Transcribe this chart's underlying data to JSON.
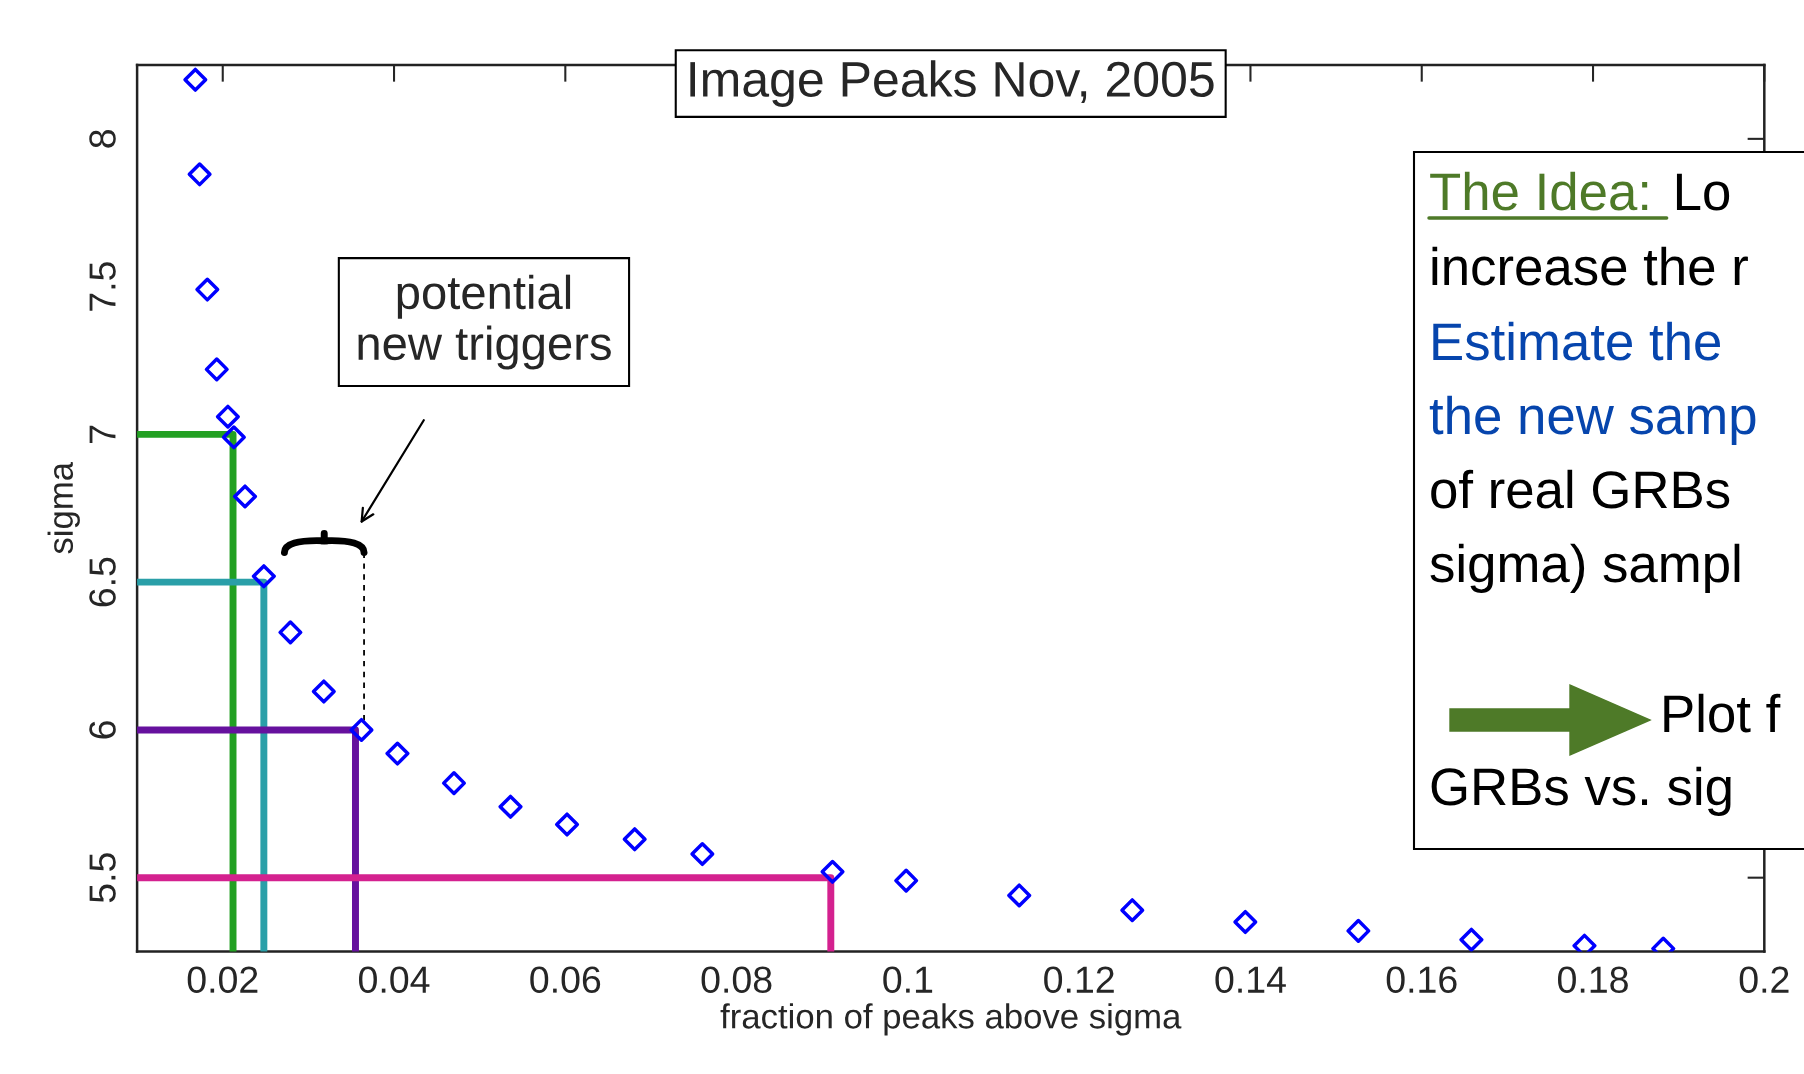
{
  "chart_data": {
    "type": "scatter",
    "title": "Image Peaks Nov, 2005",
    "xlabel": "fraction of peaks above sigma",
    "ylabel": "sigma",
    "xlim": [
      0.01,
      0.2
    ],
    "ylim": [
      5.25,
      8.25
    ],
    "xticks": [
      0.02,
      0.04,
      0.06,
      0.08,
      0.1,
      0.12,
      0.14,
      0.16,
      0.18,
      0.2
    ],
    "yticks": [
      5.5,
      6,
      6.5,
      7,
      7.5,
      8
    ],
    "grid": false,
    "legend": false,
    "series": [
      {
        "marker": "diamond",
        "color": "#0000ff",
        "x": [
          0.0168,
          0.0173,
          0.0182,
          0.0193,
          0.0206,
          0.0213,
          0.0226,
          0.0248,
          0.0279,
          0.0318,
          0.0362,
          0.0404,
          0.047,
          0.0536,
          0.0602,
          0.0681,
          0.076,
          0.0912,
          0.0998,
          0.113,
          0.1262,
          0.1394,
          0.1526,
          0.1658,
          0.179,
          0.1882
        ],
        "values": [
          8.2,
          7.88,
          7.49,
          7.22,
          7.06,
          6.99,
          6.79,
          6.52,
          6.33,
          6.13,
          6.0,
          5.92,
          5.82,
          5.74,
          5.68,
          5.63,
          5.58,
          5.52,
          5.49,
          5.44,
          5.39,
          5.35,
          5.32,
          5.29,
          5.27,
          5.26
        ]
      },
      {
        "type": "line",
        "color": "#22a022",
        "x": [
          0.01,
          0.0212,
          0.0212
        ],
        "values": [
          7.0,
          7.0,
          5.25
        ]
      },
      {
        "type": "line",
        "color": "#2a9fa8",
        "x": [
          0.01,
          0.0248,
          0.0248
        ],
        "values": [
          6.5,
          6.5,
          5.25
        ]
      },
      {
        "type": "line",
        "color": "#66119e",
        "x": [
          0.01,
          0.0355,
          0.0355
        ],
        "values": [
          6.0,
          6.0,
          5.25
        ]
      },
      {
        "type": "line",
        "color": "#d4218f",
        "x": [
          0.01,
          0.091,
          0.091
        ],
        "values": [
          5.5,
          5.5,
          5.25
        ]
      }
    ],
    "annotations": [
      "potential\nnew triggers",
      "The Idea: ",
      "Lo",
      "increase the r",
      "Estimate the",
      "the new samp",
      "of real GRBs",
      "sigma) sampl",
      "Plot f",
      "GRBs vs. sig"
    ]
  }
}
